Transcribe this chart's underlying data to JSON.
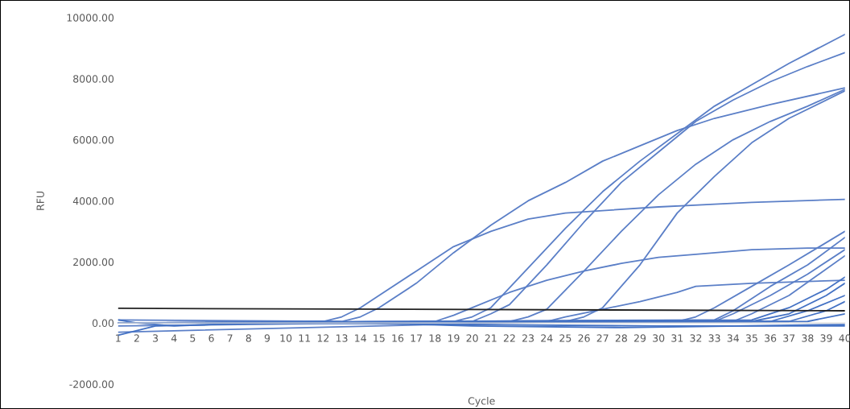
{
  "chart_data": {
    "type": "line",
    "xlabel": "Cycle",
    "ylabel": "RFU",
    "xlim": [
      1,
      40
    ],
    "xticks": [
      1,
      2,
      3,
      4,
      5,
      6,
      7,
      8,
      9,
      10,
      11,
      12,
      13,
      14,
      15,
      16,
      17,
      18,
      19,
      20,
      21,
      22,
      23,
      24,
      25,
      26,
      27,
      28,
      29,
      30,
      31,
      32,
      33,
      34,
      35,
      36,
      37,
      38,
      39,
      40
    ],
    "ylim": [
      -2000,
      10000
    ],
    "yticks": [
      {
        "value": -2000,
        "label": "-2000.00"
      },
      {
        "value": 0,
        "label": "0.00"
      },
      {
        "value": 2000,
        "label": "2000.00"
      },
      {
        "value": 4000,
        "label": "4000.00"
      },
      {
        "value": 6000,
        "label": "6000.00"
      },
      {
        "value": 8000,
        "label": "8000.00"
      },
      {
        "value": 10000,
        "label": "10000.00"
      }
    ],
    "grid": false,
    "marker": "none",
    "line_style": "solid",
    "series": [
      {
        "color": "#5b7fc7",
        "x": [
          1,
          12,
          13,
          14,
          15,
          17,
          19,
          21,
          23,
          25,
          30,
          35,
          40
        ],
        "values": [
          0,
          50,
          200,
          500,
          900,
          1700,
          2500,
          3000,
          3400,
          3600,
          3800,
          3950,
          4050
        ]
      },
      {
        "color": "#5b7fc7",
        "x": [
          1,
          13,
          14,
          15,
          17,
          19,
          21,
          23,
          25,
          27,
          29,
          31,
          33,
          36,
          40
        ],
        "values": [
          100,
          50,
          200,
          500,
          1300,
          2300,
          3200,
          4000,
          4600,
          5300,
          5800,
          6300,
          6700,
          7150,
          7700
        ]
      },
      {
        "color": "#5b7fc7",
        "x": [
          1,
          19,
          20,
          21,
          23,
          25,
          27,
          29,
          31,
          33,
          35,
          37,
          40
        ],
        "values": [
          0,
          50,
          200,
          500,
          1800,
          3100,
          4300,
          5300,
          6200,
          7100,
          7800,
          8500,
          9450
        ]
      },
      {
        "color": "#5b7fc7",
        "x": [
          1,
          20,
          21,
          22,
          24,
          26,
          28,
          30,
          32,
          34,
          36,
          38,
          40
        ],
        "values": [
          0,
          50,
          300,
          600,
          1900,
          3300,
          4600,
          5600,
          6600,
          7300,
          7900,
          8400,
          8850
        ]
      },
      {
        "color": "#5b7fc7",
        "x": [
          1,
          22,
          23,
          24,
          26,
          28,
          30,
          32,
          34,
          36,
          38,
          40
        ],
        "values": [
          -100,
          50,
          200,
          450,
          1700,
          3000,
          4200,
          5200,
          6000,
          6600,
          7100,
          7650
        ]
      },
      {
        "color": "#5b7fc7",
        "x": [
          1,
          25,
          26,
          27,
          29,
          31,
          33,
          35,
          37,
          40
        ],
        "values": [
          -300,
          50,
          200,
          500,
          1900,
          3600,
          4800,
          5900,
          6700,
          7600
        ]
      },
      {
        "color": "#5b7fc7",
        "x": [
          1,
          18,
          19,
          20,
          22,
          24,
          26,
          28,
          30,
          32,
          35,
          38,
          40
        ],
        "values": [
          0,
          50,
          250,
          500,
          1000,
          1400,
          1700,
          1950,
          2150,
          2250,
          2400,
          2450,
          2450
        ]
      },
      {
        "color": "#5b7fc7",
        "x": [
          1,
          24,
          25,
          27,
          29,
          31,
          32,
          35,
          40
        ],
        "values": [
          0,
          50,
          200,
          450,
          700,
          1000,
          1200,
          1300,
          1400
        ]
      },
      {
        "color": "#5b7fc7",
        "x": [
          1,
          31,
          32,
          33,
          35,
          37,
          40
        ],
        "values": [
          0,
          50,
          200,
          500,
          1200,
          1900,
          3000
        ]
      },
      {
        "color": "#5b7fc7",
        "x": [
          1,
          33,
          34,
          36,
          38,
          40
        ],
        "values": [
          0,
          100,
          400,
          1200,
          1900,
          2800
        ]
      },
      {
        "color": "#5b7fc7",
        "x": [
          1,
          33,
          34,
          36,
          38,
          40
        ],
        "values": [
          0,
          50,
          300,
          900,
          1600,
          2400
        ]
      },
      {
        "color": "#5b7fc7",
        "x": [
          1,
          34,
          35,
          37,
          40
        ],
        "values": [
          0,
          50,
          300,
          900,
          2200
        ]
      },
      {
        "color": "#4472c4",
        "x": [
          1,
          35,
          37,
          39,
          40
        ],
        "values": [
          0,
          100,
          500,
          1100,
          1500
        ]
      },
      {
        "color": "#4472c4",
        "x": [
          1,
          35,
          37,
          39,
          40
        ],
        "values": [
          0,
          50,
          300,
          900,
          1300
        ]
      },
      {
        "color": "#4472c4",
        "x": [
          1,
          36,
          38,
          40
        ],
        "values": [
          0,
          50,
          400,
          900
        ]
      },
      {
        "color": "#4472c4",
        "x": [
          1,
          37,
          39,
          40
        ],
        "values": [
          0,
          50,
          400,
          700
        ]
      },
      {
        "color": "#4472c4",
        "x": [
          1,
          38,
          40
        ],
        "values": [
          0,
          50,
          300
        ]
      },
      {
        "color": "#4472c4",
        "x": [
          1,
          3,
          6,
          10,
          20,
          30,
          40
        ],
        "values": [
          -400,
          -100,
          -50,
          0,
          -50,
          -100,
          -100
        ]
      },
      {
        "color": "#4472c4",
        "x": [
          1,
          2,
          4,
          8,
          12,
          20,
          28,
          40
        ],
        "values": [
          100,
          0,
          -100,
          0,
          50,
          -100,
          -150,
          -50
        ]
      },
      {
        "color": "#222222",
        "x": [
          1,
          40
        ],
        "values": [
          480,
          400
        ]
      }
    ]
  }
}
